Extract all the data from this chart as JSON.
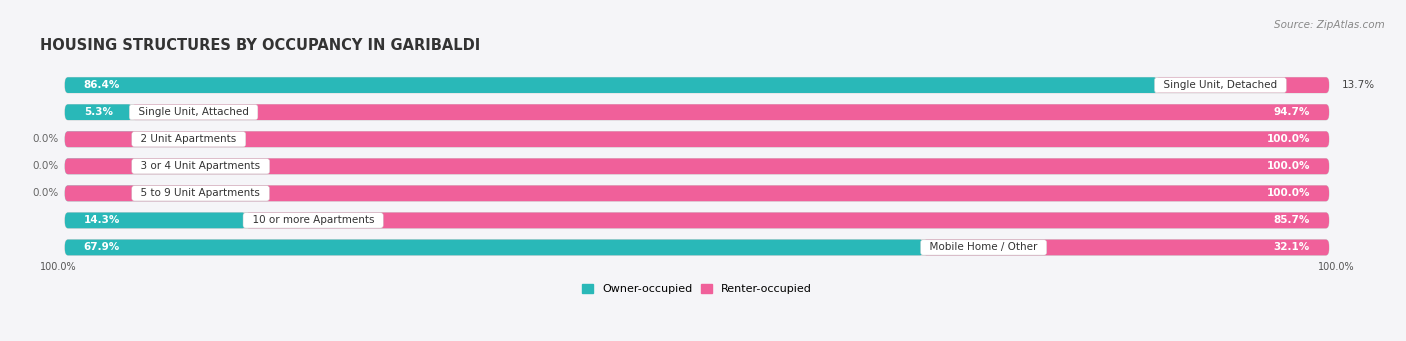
{
  "title": "HOUSING STRUCTURES BY OCCUPANCY IN GARIBALDI",
  "source": "Source: ZipAtlas.com",
  "categories": [
    "Single Unit, Detached",
    "Single Unit, Attached",
    "2 Unit Apartments",
    "3 or 4 Unit Apartments",
    "5 to 9 Unit Apartments",
    "10 or more Apartments",
    "Mobile Home / Other"
  ],
  "owner_pct": [
    86.4,
    5.3,
    0.0,
    0.0,
    0.0,
    14.3,
    67.9
  ],
  "renter_pct": [
    13.7,
    94.7,
    100.0,
    100.0,
    100.0,
    85.7,
    32.1
  ],
  "owner_color": "#29b8b8",
  "owner_color_light": "#7dd4d4",
  "renter_color": "#f0609a",
  "renter_color_light": "#f8b0cc",
  "bg_bar_color": "#e2e2ea",
  "fig_bg": "#f5f5f8",
  "title_fontsize": 10.5,
  "source_fontsize": 7.5,
  "label_fontsize": 7.5,
  "pct_fontsize": 7.5,
  "fig_width": 14.06,
  "fig_height": 3.41
}
